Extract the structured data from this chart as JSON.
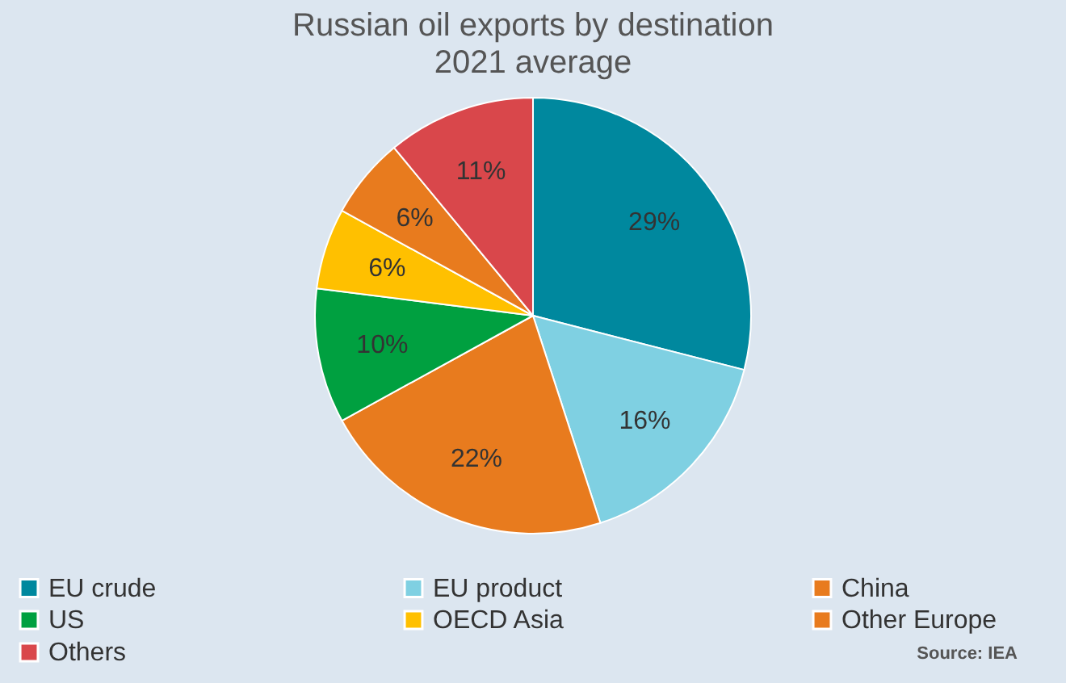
{
  "chart_data": {
    "type": "pie",
    "title": "Russian oil exports by destination",
    "subtitle": "2021 average",
    "categories": [
      "EU crude",
      "EU product",
      "China",
      "US",
      "OECD Asia",
      "Other Europe",
      "Others"
    ],
    "values": [
      29,
      16,
      22,
      10,
      6,
      6,
      11
    ],
    "colors": [
      "#00889e",
      "#7fd0e2",
      "#e87b1e",
      "#00a040",
      "#ffc000",
      "#e87b1e",
      "#d9474b"
    ],
    "value_labels": [
      "29%",
      "16%",
      "22%",
      "10%",
      "6%",
      "6%",
      "11%"
    ],
    "legend": "bottom",
    "annotations": [
      "Source: IEA"
    ]
  }
}
